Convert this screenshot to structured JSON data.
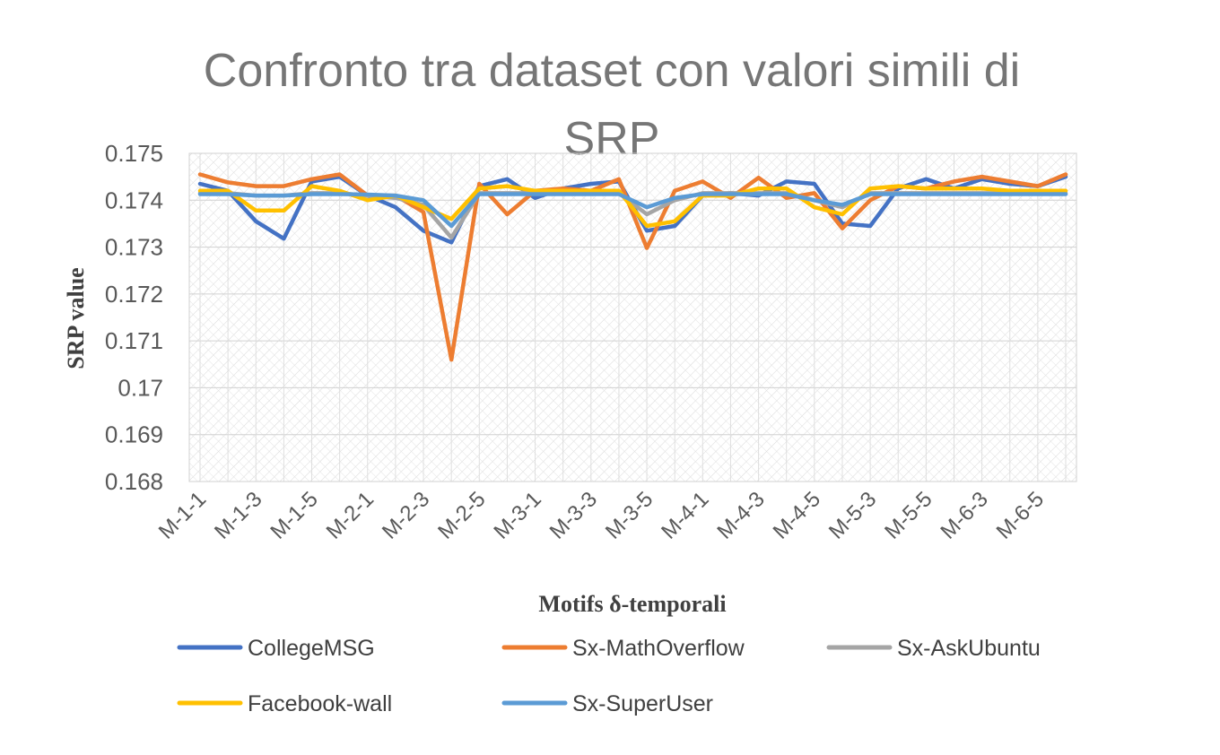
{
  "chart_data": {
    "type": "line",
    "title_line1": "Confronto tra dataset con valori simili di",
    "title_line2": "SRP",
    "xlabel": "Motifs δ-temporali",
    "ylabel": "SRP value",
    "ylim": [
      0.168,
      0.175
    ],
    "yticks": [
      "0.175",
      "0.174",
      "0.173",
      "0.172",
      "0.171",
      "0.17",
      "0.169",
      "0.168"
    ],
    "x_tick_labels": [
      "M-1-1",
      "M-1-3",
      "M-1-5",
      "M-2-1",
      "M-2-3",
      "M-2-5",
      "M-3-1",
      "M-3-3",
      "M-3-5",
      "M-4-1",
      "M-4-3",
      "M-4-5",
      "M-5-3",
      "M-5-5",
      "M-6-3",
      "M-6-5"
    ],
    "grid": true,
    "legend_position": "bottom",
    "series": [
      {
        "name": "CollegeMSG",
        "color": "#4472C4",
        "values": [
          0.17435,
          0.1742,
          0.17355,
          0.17318,
          0.1744,
          0.1745,
          0.1741,
          0.17385,
          0.17335,
          0.1731,
          0.1743,
          0.17445,
          0.17405,
          0.17425,
          0.17435,
          0.1744,
          0.17335,
          0.17345,
          0.1741,
          0.17415,
          0.1741,
          0.1744,
          0.17435,
          0.1735,
          0.17345,
          0.17425,
          0.17445,
          0.17425,
          0.17445,
          0.17435,
          0.1743,
          0.1745
        ]
      },
      {
        "name": "Sx-MathOverflow",
        "color": "#ED7D31",
        "values": [
          0.17455,
          0.17438,
          0.1743,
          0.1743,
          0.17445,
          0.17455,
          0.1741,
          0.1741,
          0.17375,
          0.1706,
          0.17435,
          0.1737,
          0.1742,
          0.17425,
          0.1742,
          0.17445,
          0.17298,
          0.1742,
          0.1744,
          0.17405,
          0.17448,
          0.17405,
          0.17415,
          0.1734,
          0.174,
          0.1743,
          0.17425,
          0.1744,
          0.1745,
          0.1744,
          0.1743,
          0.17455
        ]
      },
      {
        "name": "Sx-AskUbuntu",
        "color": "#A5A5A5",
        "values": [
          0.17415,
          0.17415,
          0.1741,
          0.1741,
          0.17415,
          0.17415,
          0.1741,
          0.17405,
          0.1739,
          0.1732,
          0.17415,
          0.17415,
          0.17415,
          0.17415,
          0.17415,
          0.17415,
          0.1737,
          0.174,
          0.17415,
          0.17415,
          0.17415,
          0.17415,
          0.174,
          0.17385,
          0.17415,
          0.17415,
          0.17415,
          0.17415,
          0.17415,
          0.17415,
          0.17415,
          0.17415
        ]
      },
      {
        "name": "Facebook-wall",
        "color": "#FFC000",
        "values": [
          0.1742,
          0.1742,
          0.17378,
          0.17378,
          0.1743,
          0.1742,
          0.174,
          0.1741,
          0.17385,
          0.1736,
          0.17425,
          0.1743,
          0.1742,
          0.1742,
          0.1742,
          0.1742,
          0.17345,
          0.17355,
          0.1741,
          0.1741,
          0.17425,
          0.17425,
          0.17385,
          0.1737,
          0.17425,
          0.1743,
          0.17425,
          0.17425,
          0.17425,
          0.1742,
          0.1742,
          0.1742
        ]
      },
      {
        "name": "Sx-SuperUser",
        "color": "#5B9BD5",
        "values": [
          0.17413,
          0.17413,
          0.1741,
          0.1741,
          0.17413,
          0.17413,
          0.17412,
          0.1741,
          0.174,
          0.17345,
          0.17413,
          0.17413,
          0.17413,
          0.17413,
          0.17413,
          0.17413,
          0.17385,
          0.17405,
          0.17413,
          0.17413,
          0.17413,
          0.17413,
          0.174,
          0.1739,
          0.17413,
          0.17413,
          0.17413,
          0.17413,
          0.17413,
          0.17413,
          0.17413,
          0.17413
        ]
      }
    ]
  }
}
